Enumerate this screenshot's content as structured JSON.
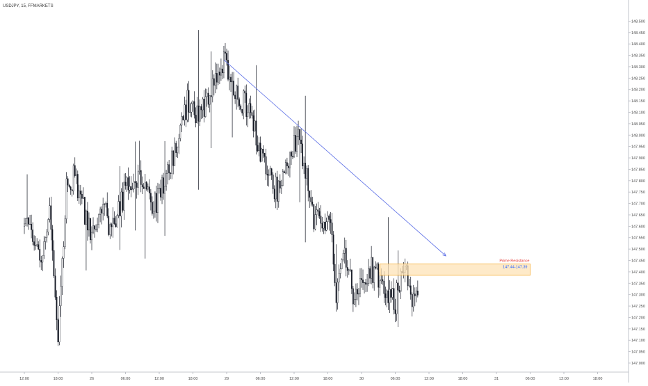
{
  "header": {
    "symbol_title": "USDJPY, 15, FFMARKETS"
  },
  "colors": {
    "candle": "#131722",
    "trendline": "#5b6ee6",
    "zone_fill": "#fde3b7",
    "zone_border": "#f5a623",
    "zone_label": "#e53935",
    "zone_value": "#2962ff",
    "axis_line": "#b2b5be",
    "axis_text": "#4a4a4a"
  },
  "chart_data": {
    "type": "candlestick",
    "title": "USDJPY, 15, FFMARKETS",
    "xlabel": "",
    "ylabel": "",
    "ylim": [
      147.0,
      148.55
    ],
    "grid": false,
    "y_ticks": [
      "148.500",
      "148.450",
      "148.400",
      "148.350",
      "148.300",
      "148.250",
      "148.200",
      "148.150",
      "148.100",
      "148.050",
      "148.000",
      "147.950",
      "147.900",
      "147.850",
      "147.800",
      "147.750",
      "147.700",
      "147.650",
      "147.600",
      "147.550",
      "147.500",
      "147.450",
      "147.400",
      "147.350",
      "147.300",
      "147.250",
      "147.200",
      "147.150",
      "147.100",
      "147.050",
      "147.000"
    ],
    "y_tick_values": [
      148.5,
      148.45,
      148.4,
      148.35,
      148.3,
      148.25,
      148.2,
      148.15,
      148.1,
      148.05,
      148.0,
      147.95,
      147.9,
      147.85,
      147.8,
      147.75,
      147.7,
      147.65,
      147.6,
      147.55,
      147.5,
      147.45,
      147.4,
      147.35,
      147.3,
      147.25,
      147.2,
      147.15,
      147.1,
      147.05,
      147.0
    ],
    "x_ticks": [
      "12:00",
      "18:00",
      "26",
      "06:00",
      "12:00",
      "18:00",
      "29",
      "06:00",
      "12:00",
      "18:00",
      "30",
      "06:00",
      "12:00",
      "18:00",
      "31",
      "06:00",
      "12:00",
      "18:00"
    ],
    "x_tick_bars": [
      0,
      24,
      48,
      72,
      96,
      120,
      144,
      168,
      192,
      216,
      240,
      264,
      288,
      312,
      336,
      360,
      384,
      408
    ],
    "bars_per_hour": 4,
    "trend_path": [
      [
        147.6,
        0
      ],
      [
        147.55,
        6
      ],
      [
        147.47,
        12
      ],
      [
        147.68,
        18
      ],
      [
        147.12,
        24
      ],
      [
        147.78,
        30
      ],
      [
        147.82,
        36
      ],
      [
        147.63,
        44
      ],
      [
        147.54,
        50
      ],
      [
        147.68,
        56
      ],
      [
        147.58,
        62
      ],
      [
        147.76,
        72
      ],
      [
        147.82,
        82
      ],
      [
        147.68,
        92
      ],
      [
        147.85,
        102
      ],
      [
        147.98,
        110
      ],
      [
        148.15,
        116
      ],
      [
        148.08,
        124
      ],
      [
        148.16,
        130
      ],
      [
        148.22,
        136
      ],
      [
        148.32,
        142
      ],
      [
        148.2,
        150
      ],
      [
        148.1,
        160
      ],
      [
        147.87,
        170
      ],
      [
        147.75,
        180
      ],
      [
        147.88,
        188
      ],
      [
        148.0,
        194
      ],
      [
        147.84,
        200
      ],
      [
        147.64,
        206
      ],
      [
        147.6,
        214
      ],
      [
        147.6,
        218
      ],
      [
        147.3,
        222
      ],
      [
        147.47,
        228
      ],
      [
        147.3,
        234
      ],
      [
        147.32,
        240
      ],
      [
        147.42,
        246
      ],
      [
        147.36,
        254
      ],
      [
        147.27,
        264
      ],
      [
        147.43,
        270
      ],
      [
        147.3,
        276
      ],
      [
        147.32,
        280
      ]
    ],
    "trendline": {
      "from": {
        "bar": 142,
        "price": 148.33
      },
      "to": {
        "bar": 300,
        "price": 147.47
      }
    },
    "zone": {
      "from_bar": 253,
      "to_bar": 360,
      "top": 147.435,
      "bottom": 147.385
    },
    "zone_title": "Prime Resistance",
    "zone_value_text": "147.44-147.39"
  }
}
